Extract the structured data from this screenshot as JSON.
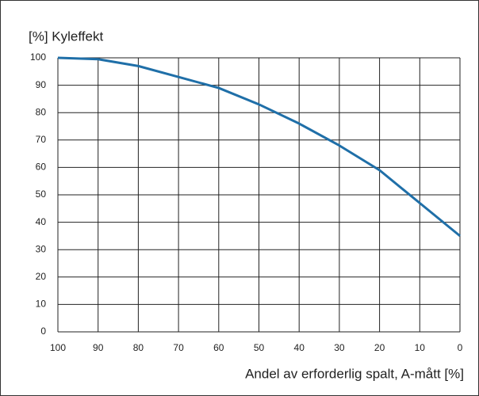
{
  "chart_data": {
    "type": "line",
    "title": "[%] Kyleffekt",
    "x_label": "Andel av erforderlig spalt, A-mått [%]",
    "x": [
      100,
      90,
      80,
      70,
      60,
      50,
      40,
      30,
      20,
      10,
      0
    ],
    "series": [
      {
        "name": "Kyleffekt",
        "color": "#1f6fa8",
        "values": [
          100,
          99.5,
          97,
          93,
          89,
          83,
          76,
          68,
          59,
          47,
          35
        ]
      }
    ],
    "xlim": [
      100,
      0
    ],
    "xticks": [
      100,
      90,
      80,
      70,
      60,
      50,
      40,
      30,
      20,
      10,
      0
    ],
    "ylim": [
      0,
      100
    ],
    "yticks": [
      0,
      10,
      20,
      30,
      40,
      50,
      60,
      70,
      80,
      90,
      100
    ],
    "grid": true
  }
}
